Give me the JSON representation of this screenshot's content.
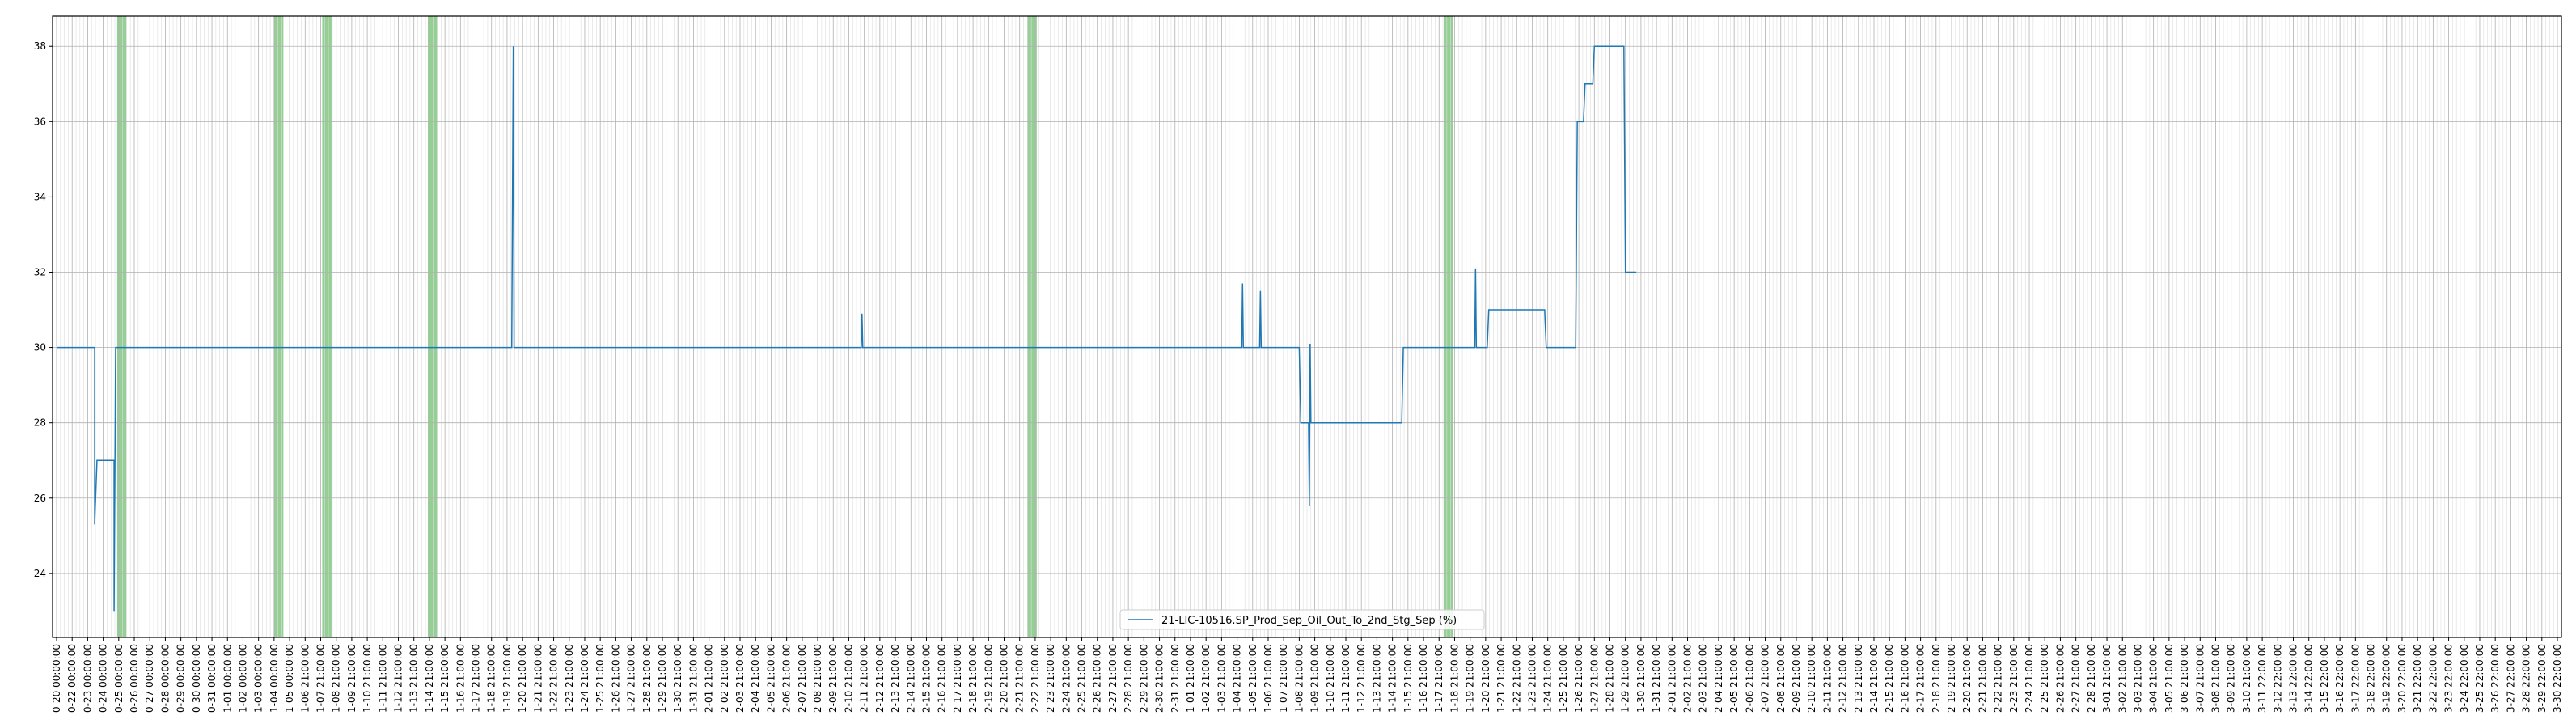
{
  "chart_data": {
    "type": "line",
    "title": "",
    "xlabel": "",
    "ylabel": "",
    "ylim": [
      22.3,
      38.8
    ],
    "y_ticks": [
      24,
      26,
      28,
      30,
      32,
      34,
      36,
      38
    ],
    "grid": true,
    "legend_position": "bottom-center",
    "x_tick_labels": [
      "0-20 00:00:00",
      "0-22 00:00:00",
      "0-23 00:00:00",
      "0-24 00:00:00",
      "0-25 00:00:00",
      "0-26 00:00:00",
      "0-27 00:00:00",
      "0-28 00:00:00",
      "0-29 00:00:00",
      "0-30 00:00:00",
      "0-31 00:00:00",
      "1-01 00:00:00",
      "1-02 00:00:00",
      "1-03 00:00:00",
      "1-04 00:00:00",
      "1-05 00:00:00",
      "1-06 21:00:00",
      "1-07 21:00:00",
      "1-08 21:00:00",
      "1-09 21:00:00",
      "1-10 21:00:00",
      "1-11 21:00:00",
      "1-12 21:00:00",
      "1-13 21:00:00",
      "1-14 21:00:00",
      "1-15 21:00:00",
      "1-16 21:00:00",
      "1-17 21:00:00",
      "1-18 21:00:00",
      "1-19 21:00:00",
      "1-20 21:00:00",
      "1-21 21:00:00",
      "1-22 21:00:00",
      "1-23 21:00:00",
      "1-24 21:00:00",
      "1-25 21:00:00",
      "1-26 21:00:00",
      "1-27 21:00:00",
      "1-28 21:00:00",
      "1-29 21:00:00",
      "1-30 21:00:00",
      "1-31 21:00:00",
      "2-01 21:00:00",
      "2-02 21:00:00",
      "2-03 21:00:00",
      "2-04 21:00:00",
      "2-05 21:00:00",
      "2-06 21:00:00",
      "2-07 21:00:00",
      "2-08 21:00:00",
      "2-09 21:00:00",
      "2-10 21:00:00",
      "2-11 21:00:00",
      "2-12 21:00:00",
      "2-13 21:00:00",
      "2-14 21:00:00",
      "2-15 21:00:00",
      "2-16 21:00:00",
      "2-17 21:00:00",
      "2-18 21:00:00",
      "2-19 21:00:00",
      "2-20 21:00:00",
      "2-21 21:00:00",
      "2-22 21:00:00",
      "2-23 21:00:00",
      "2-24 21:00:00",
      "2-25 21:00:00",
      "2-26 21:00:00",
      "2-27 21:00:00",
      "2-28 21:00:00",
      "2-29 21:00:00",
      "2-30 21:00:00",
      "2-31 21:00:00",
      "1-01 21:00:00",
      "1-02 21:00:00",
      "1-03 21:00:00",
      "1-04 21:00:00",
      "1-05 21:00:00",
      "1-06 21:00:00",
      "1-07 21:00:00",
      "1-08 21:00:00",
      "1-09 21:00:00",
      "1-10 21:00:00",
      "1-11 21:00:00",
      "1-12 21:00:00",
      "1-13 21:00:00",
      "1-14 21:00:00",
      "1-15 21:00:00",
      "1-16 21:00:00",
      "1-17 21:00:00",
      "1-18 21:00:00",
      "1-19 21:00:00",
      "1-20 21:00:00",
      "1-21 21:00:00",
      "1-22 21:00:00",
      "1-23 21:00:00",
      "1-24 21:00:00",
      "1-25 21:00:00",
      "1-26 21:00:00",
      "1-27 21:00:00",
      "1-28 21:00:00",
      "1-29 21:00:00",
      "1-30 21:00:00",
      "1-31 21:00:00",
      "2-01 21:00:00",
      "2-02 21:00:00",
      "2-03 21:00:00",
      "2-04 21:00:00",
      "2-05 21:00:00",
      "2-06 21:00:00",
      "2-07 21:00:00",
      "2-08 21:00:00",
      "2-09 21:00:00",
      "2-10 21:00:00",
      "2-11 21:00:00",
      "2-12 21:00:00",
      "2-13 21:00:00",
      "2-14 21:00:00",
      "2-15 21:00:00",
      "2-16 21:00:00",
      "2-17 21:00:00",
      "2-18 21:00:00",
      "2-19 21:00:00",
      "2-20 21:00:00",
      "2-21 21:00:00",
      "2-22 21:00:00",
      "2-23 21:00:00",
      "2-24 21:00:00",
      "2-25 21:00:00",
      "2-26 21:00:00",
      "2-27 21:00:00",
      "2-28 21:00:00",
      "3-01 21:00:00",
      "3-02 21:00:00",
      "3-03 21:00:00",
      "3-04 21:00:00",
      "3-05 21:00:00",
      "3-06 21:00:00",
      "3-07 21:00:00",
      "3-08 21:00:00",
      "3-09 21:00:00",
      "3-10 21:00:00",
      "3-11 22:00:00",
      "3-12 22:00:00",
      "3-13 22:00:00",
      "3-14 22:00:00",
      "3-15 22:00:00",
      "3-16 22:00:00",
      "3-17 22:00:00",
      "3-18 22:00:00",
      "3-19 22:00:00",
      "3-20 22:00:00",
      "3-21 22:00:00",
      "3-22 22:00:00",
      "3-23 22:00:00",
      "3-24 22:00:00",
      "3-25 22:00:00",
      "3-26 22:00:00",
      "3-27 22:00:00",
      "3-28 22:00:00",
      "3-29 22:00:00",
      "3-30 22:00:00"
    ],
    "shaded_regions": [
      {
        "start": 3.9,
        "end": 4.5
      },
      {
        "start": 14.0,
        "end": 14.6
      },
      {
        "start": 17.1,
        "end": 17.7
      },
      {
        "start": 23.9,
        "end": 24.5
      },
      {
        "start": 62.5,
        "end": 63.1
      },
      {
        "start": 89.3,
        "end": 89.9
      }
    ],
    "series": [
      {
        "name": "21-LIC-10516.SP_Prod_Sep_Oil_Out_To_2nd_Stg_Sep (%)",
        "color": "#1f77b4",
        "points": [
          [
            0,
            30
          ],
          [
            2.45,
            30
          ],
          [
            2.45,
            25.3
          ],
          [
            2.6,
            27
          ],
          [
            3.7,
            27
          ],
          [
            3.7,
            23
          ],
          [
            3.8,
            30
          ],
          [
            29.3,
            30
          ],
          [
            29.4,
            38
          ],
          [
            29.45,
            30
          ],
          [
            51.8,
            30
          ],
          [
            51.85,
            30.9
          ],
          [
            51.9,
            30
          ],
          [
            76.3,
            30
          ],
          [
            76.35,
            31.7
          ],
          [
            76.4,
            30
          ],
          [
            77.45,
            30
          ],
          [
            77.5,
            31.5
          ],
          [
            77.55,
            30
          ],
          [
            80.0,
            30
          ],
          [
            80.1,
            28
          ],
          [
            80.6,
            28
          ],
          [
            80.65,
            25.8
          ],
          [
            80.7,
            30.1
          ],
          [
            80.75,
            28
          ],
          [
            86.6,
            28
          ],
          [
            86.7,
            30
          ],
          [
            91.3,
            30
          ],
          [
            91.35,
            32.1
          ],
          [
            91.4,
            30
          ],
          [
            92.1,
            30
          ],
          [
            92.2,
            31
          ],
          [
            95.8,
            31
          ],
          [
            95.9,
            30
          ],
          [
            97.8,
            30
          ],
          [
            97.9,
            36
          ],
          [
            98.3,
            36
          ],
          [
            98.4,
            37
          ],
          [
            98.9,
            37
          ],
          [
            99.0,
            38
          ],
          [
            100.9,
            38
          ],
          [
            101.0,
            32
          ],
          [
            101.7,
            32
          ]
        ]
      }
    ]
  }
}
